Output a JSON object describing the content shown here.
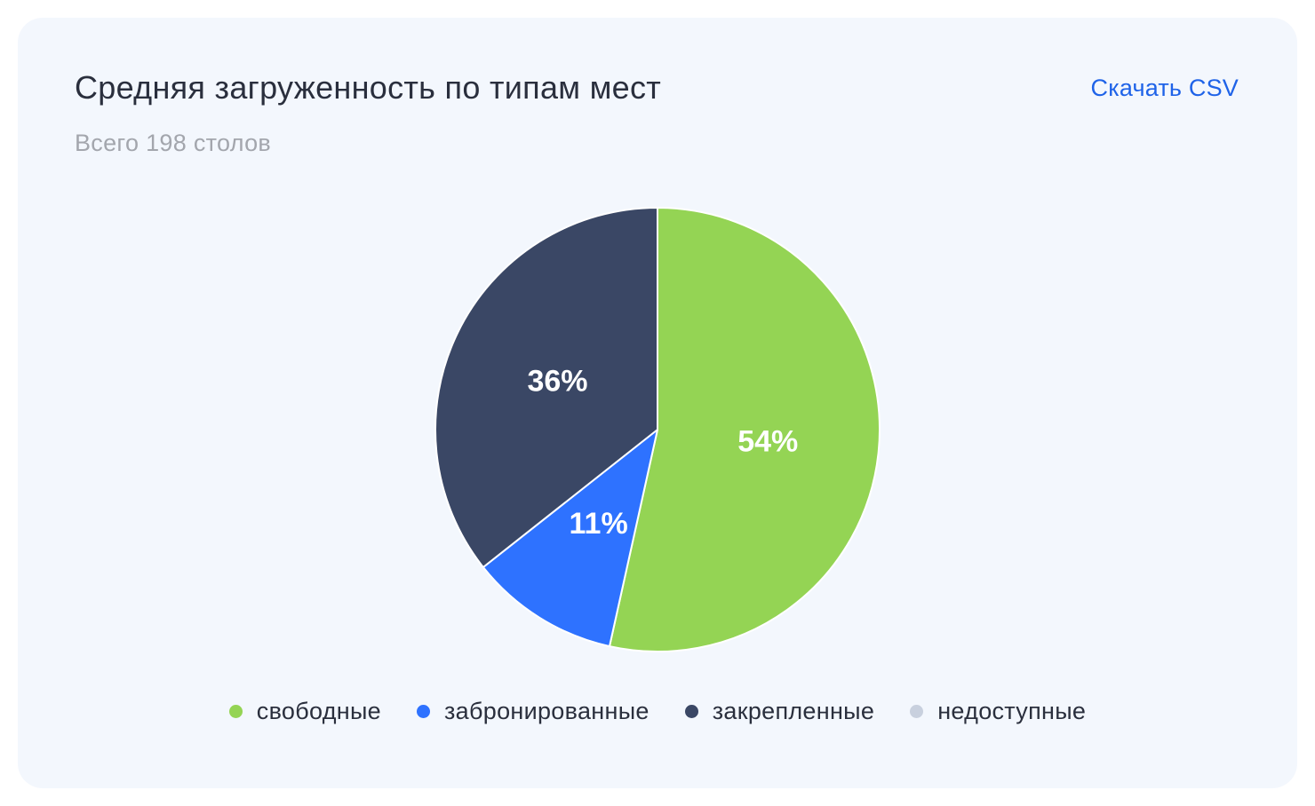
{
  "header": {
    "title": "Средняя загруженность по типам мест",
    "subtitle": "Всего 198 столов",
    "download_label": "Скачать CSV"
  },
  "colors": {
    "accent": "#1f63e8",
    "card_background": "#f3f7fd"
  },
  "chart_data": {
    "type": "pie",
    "title": "Средняя загруженность по типам мест",
    "subtitle": "Всего 198 столов",
    "total": 198,
    "legend_position": "bottom",
    "slices": [
      {
        "name": "свободные",
        "value": 54,
        "label": "54%",
        "color": "#94d454"
      },
      {
        "name": "забронированные",
        "value": 11,
        "label": "11%",
        "color": "#2e72ff"
      },
      {
        "name": "закрепленные",
        "value": 36,
        "label": "36%",
        "color": "#3a4765"
      },
      {
        "name": "недоступные",
        "value": 0,
        "label": "",
        "color": "#c8d0de"
      }
    ]
  }
}
